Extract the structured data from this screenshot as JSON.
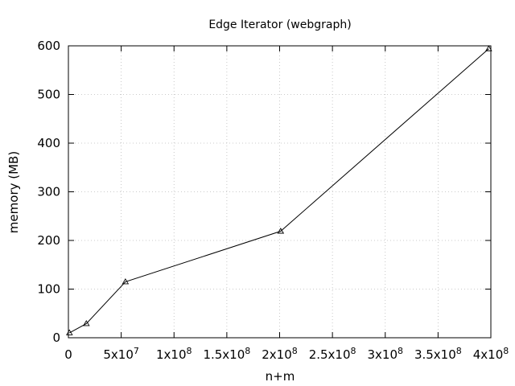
{
  "chart_data": {
    "type": "line",
    "title": "Edge Iterator (webgraph)",
    "xlabel": "n+m",
    "ylabel": "memory (MB)",
    "xlim": [
      0,
      400000000
    ],
    "ylim": [
      0,
      600
    ],
    "grid": true,
    "legend": "none",
    "x_ticks": [
      {
        "value": 0,
        "label": "0",
        "sup": ""
      },
      {
        "value": 50000000,
        "label": "5x10",
        "sup": "7"
      },
      {
        "value": 100000000,
        "label": "1x10",
        "sup": "8"
      },
      {
        "value": 150000000,
        "label": "1.5x10",
        "sup": "8"
      },
      {
        "value": 200000000,
        "label": "2x10",
        "sup": "8"
      },
      {
        "value": 250000000,
        "label": "2.5x10",
        "sup": "8"
      },
      {
        "value": 300000000,
        "label": "3x10",
        "sup": "8"
      },
      {
        "value": 350000000,
        "label": "3.5x10",
        "sup": "8"
      },
      {
        "value": 400000000,
        "label": "4x10",
        "sup": "8"
      }
    ],
    "y_ticks": [
      {
        "value": 0,
        "label": "0"
      },
      {
        "value": 100,
        "label": "100"
      },
      {
        "value": 200,
        "label": "200"
      },
      {
        "value": 300,
        "label": "300"
      },
      {
        "value": 400,
        "label": "400"
      },
      {
        "value": 500,
        "label": "500"
      },
      {
        "value": 600,
        "label": "600"
      }
    ],
    "series": [
      {
        "color": "#000000",
        "marker": "triangle",
        "x": [
          1000000,
          17000000,
          54000000,
          201000000,
          398000000
        ],
        "y": [
          10,
          29,
          115,
          219,
          594
        ]
      }
    ]
  }
}
